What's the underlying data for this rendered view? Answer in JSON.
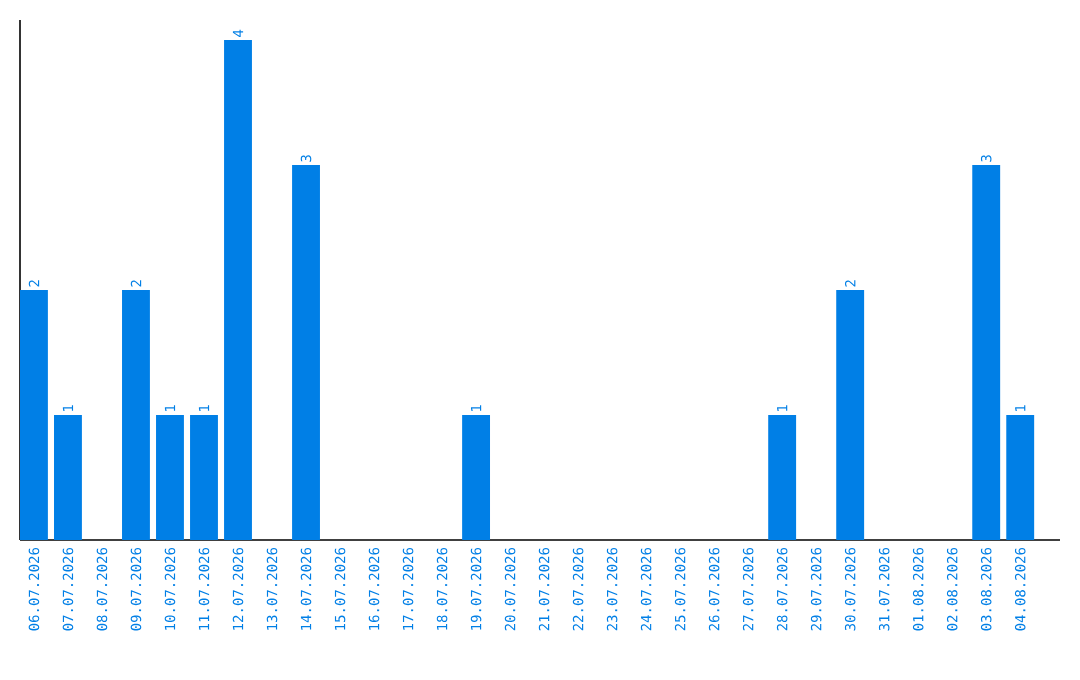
{
  "chart_data": {
    "type": "bar",
    "categories": [
      "06.07.2026",
      "07.07.2026",
      "08.07.2026",
      "09.07.2026",
      "10.07.2026",
      "11.07.2026",
      "12.07.2026",
      "13.07.2026",
      "14.07.2026",
      "15.07.2026",
      "16.07.2026",
      "17.07.2026",
      "18.07.2026",
      "19.07.2026",
      "20.07.2026",
      "21.07.2026",
      "22.07.2026",
      "23.07.2026",
      "24.07.2026",
      "25.07.2026",
      "26.07.2026",
      "27.07.2026",
      "28.07.2026",
      "29.07.2026",
      "30.07.2026",
      "31.07.2026",
      "01.08.2026",
      "02.08.2026",
      "03.08.2026",
      "04.08.2026"
    ],
    "values": [
      2,
      1,
      0,
      2,
      1,
      1,
      4,
      0,
      3,
      0,
      0,
      0,
      0,
      1,
      0,
      0,
      0,
      0,
      0,
      0,
      0,
      0,
      1,
      0,
      2,
      0,
      0,
      0,
      3,
      1
    ],
    "value_labels": [
      "2",
      "1",
      null,
      "2",
      "1",
      "1",
      "4",
      null,
      "3",
      null,
      null,
      null,
      null,
      "1",
      null,
      null,
      null,
      null,
      null,
      null,
      null,
      null,
      "1",
      null,
      "2",
      null,
      null,
      null,
      "3",
      "1"
    ],
    "color": "#007fe6",
    "ylim": [
      0,
      4.16
    ],
    "tick_labels": "x"
  }
}
